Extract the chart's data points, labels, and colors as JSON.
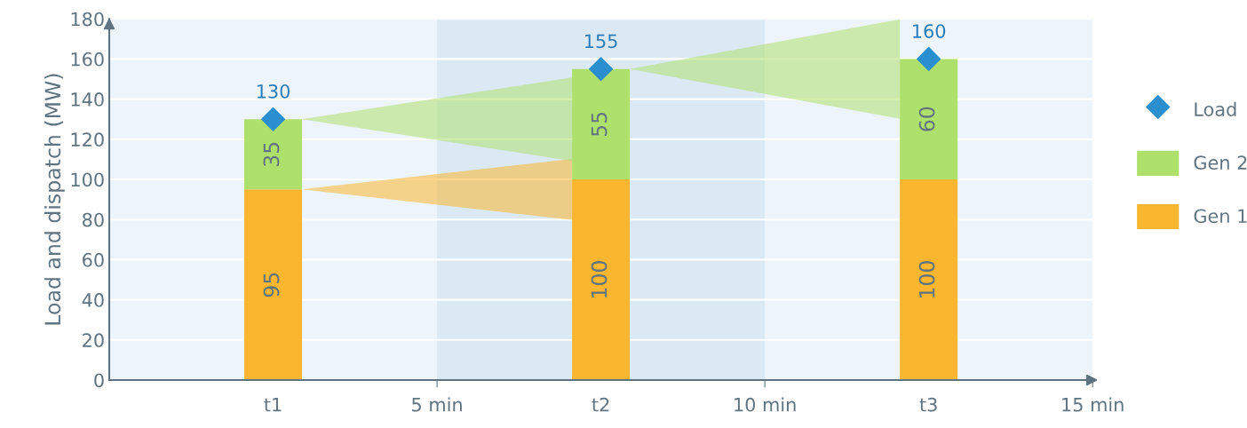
{
  "chart_data": {
    "type": "bar",
    "stacked": true,
    "ylabel": "Load and dispatch (MW)",
    "x": [
      2.5,
      7.5,
      12.5
    ],
    "series": [
      {
        "name": "Gen 1",
        "color": "#f9b62e",
        "values": [
          95,
          100,
          100
        ]
      },
      {
        "name": "Gen 2",
        "color": "#aee06c",
        "values": [
          35,
          55,
          60
        ]
      },
      {
        "name": "Load",
        "type": "scatter",
        "marker": "diamond",
        "color": "#2b8fcf",
        "values": [
          130,
          155,
          160
        ],
        "value_labels": [
          "130",
          "155",
          "160"
        ]
      }
    ],
    "data_labels": true,
    "xlim": [
      0,
      15
    ],
    "xticks": [
      {
        "value": 2.5,
        "label": "t1"
      },
      {
        "value": 5,
        "label": "5 min"
      },
      {
        "value": 7.5,
        "label": "t2"
      },
      {
        "value": 10,
        "label": "10 min"
      },
      {
        "value": 12.5,
        "label": "t3"
      },
      {
        "value": 15,
        "label": "15 min"
      }
    ],
    "ylim": [
      0,
      180
    ],
    "yticks": [
      0,
      20,
      40,
      60,
      80,
      100,
      120,
      140,
      160,
      180
    ],
    "bands": [
      {
        "axis": "x",
        "from": 5,
        "to": 10,
        "color": "#dbe9f5"
      }
    ],
    "grid": "y",
    "legend": "right"
  }
}
